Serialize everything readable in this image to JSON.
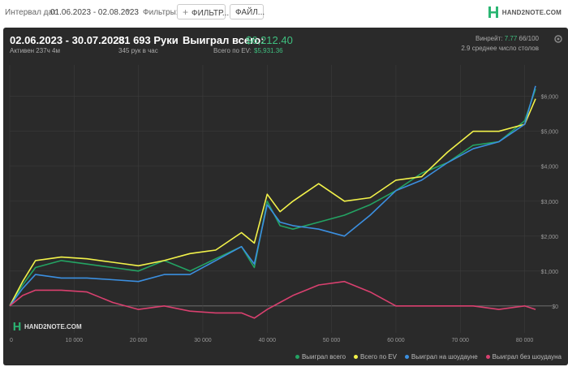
{
  "toolbar": {
    "interval_label": "Интервал дат:",
    "interval_value": "01.06.2023 - 02.08.2023",
    "filters_label": "Фильтры:",
    "filter_button": "ФИЛЬТР...",
    "files_button": "ФАЙЛ...",
    "logo_text": "HAND2NOTE.COM"
  },
  "stats": {
    "date_range": "02.06.2023 - 30.07.2023",
    "active": "Активен 237ч 4м",
    "hands": "81 693 Руки",
    "hands_per_hour": "345 рук в час",
    "won_total_label": "Выиграл всего:",
    "won_total_value": "$6,212.40",
    "ev_label": "Всего по EV:",
    "ev_value": "$5,931.36",
    "winrate_label": "Винрейт:",
    "winrate_value": "7.77",
    "winrate_suffix": "66/100",
    "avg_tables": "2.9 среднее число столов"
  },
  "watermark": "HAND2NOTE.COM",
  "colors": {
    "won_total": "#23a363",
    "ev": "#f2f24a",
    "showdown": "#3b8fe0",
    "no_showdown": "#d9406f",
    "panel_bg": "#2a2a2a"
  },
  "chart_data": {
    "type": "line",
    "xlim": [
      0,
      81693
    ],
    "ylim": [
      -400,
      6900
    ],
    "x_ticks": [
      "0",
      "10 000",
      "20 000",
      "30 000",
      "40 000",
      "50 000",
      "60 000",
      "70 000",
      "80 000"
    ],
    "x_tick_values": [
      0,
      10000,
      20000,
      30000,
      40000,
      50000,
      60000,
      70000,
      80000
    ],
    "y_ticks": [
      "$0",
      "$1,000",
      "$2,000",
      "$3,000",
      "$4,000",
      "$5,000",
      "$6,000"
    ],
    "y_tick_values": [
      0,
      1000,
      2000,
      3000,
      4000,
      5000,
      6000
    ],
    "grid": true,
    "legend_position": "bottom-right",
    "x": [
      0,
      2000,
      4000,
      8000,
      12000,
      16000,
      20000,
      24000,
      28000,
      32000,
      36000,
      38000,
      40000,
      42000,
      44000,
      48000,
      52000,
      56000,
      60000,
      64000,
      68000,
      72000,
      76000,
      80000,
      81693
    ],
    "series": [
      {
        "name": "Выиграл всего",
        "color_key": "won_total",
        "values": [
          0,
          600,
          1100,
          1300,
          1200,
          1100,
          1000,
          1300,
          1000,
          1350,
          1700,
          1100,
          3000,
          2300,
          2200,
          2400,
          2600,
          2900,
          3300,
          3800,
          4100,
          4600,
          4700,
          5300,
          6212
        ]
      },
      {
        "name": "Всего по EV",
        "color_key": "ev",
        "values": [
          0,
          700,
          1300,
          1400,
          1350,
          1250,
          1150,
          1300,
          1500,
          1600,
          2100,
          1800,
          3200,
          2700,
          3000,
          3500,
          3000,
          3100,
          3600,
          3700,
          4400,
          5000,
          5000,
          5200,
          5931
        ]
      },
      {
        "name": "Выиграл на шоудауне",
        "color_key": "showdown",
        "values": [
          0,
          500,
          900,
          800,
          800,
          750,
          700,
          900,
          900,
          1300,
          1700,
          1200,
          2900,
          2400,
          2300,
          2200,
          2000,
          2600,
          3300,
          3600,
          4100,
          4500,
          4700,
          5200,
          6300
        ]
      },
      {
        "name": "Выиграл без шоудауна",
        "color_key": "no_showdown",
        "values": [
          0,
          300,
          450,
          450,
          400,
          100,
          -100,
          0,
          -150,
          -200,
          -200,
          -350,
          -100,
          100,
          300,
          600,
          700,
          400,
          0,
          0,
          0,
          0,
          -100,
          0,
          -100
        ]
      }
    ]
  }
}
